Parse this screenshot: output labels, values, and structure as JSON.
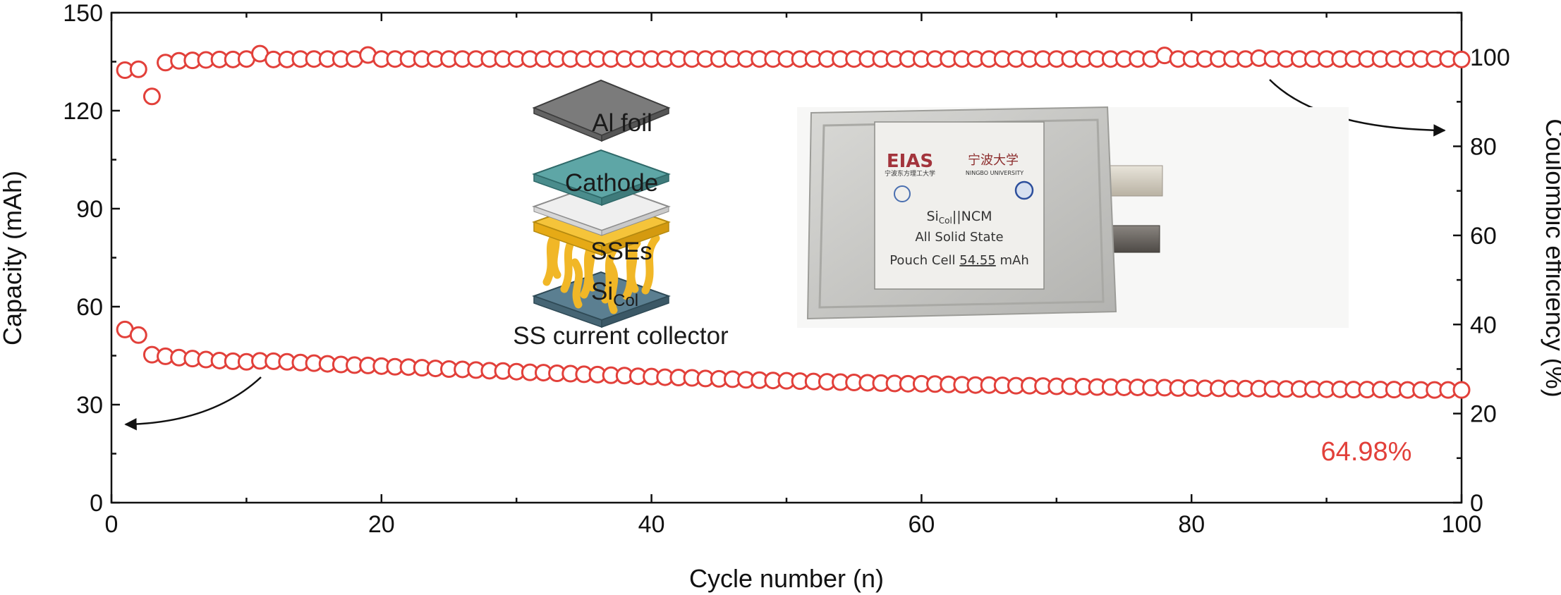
{
  "chart_data": {
    "type": "scatter",
    "xlabel": "Cycle number (n)",
    "ylabel": "Capacity (mAh)",
    "y2label": "Coulombic efficiency (%)",
    "xlim": [
      0,
      100
    ],
    "ylim": [
      0,
      150
    ],
    "y2lim": [
      0,
      110
    ],
    "xticks": [
      "0",
      "20",
      "40",
      "60",
      "80",
      "100"
    ],
    "yticks": [
      "0",
      "30",
      "60",
      "90",
      "120",
      "150"
    ],
    "y2ticks": [
      "0",
      "20",
      "40",
      "60",
      "80",
      "100"
    ],
    "grid": false,
    "legend": "none",
    "retention_annotation": "64.98%",
    "marker_color": "#e2403a",
    "series": [
      {
        "axis": "left",
        "x": [
          1,
          2,
          3,
          4,
          5,
          6,
          7,
          8,
          9,
          10,
          11,
          12,
          13,
          14,
          15,
          16,
          17,
          18,
          19,
          20,
          21,
          22,
          23,
          24,
          25,
          26,
          27,
          28,
          29,
          30,
          31,
          32,
          33,
          34,
          35,
          36,
          37,
          38,
          39,
          40,
          41,
          42,
          43,
          44,
          45,
          46,
          47,
          48,
          49,
          50,
          51,
          52,
          53,
          54,
          55,
          56,
          57,
          58,
          59,
          60,
          61,
          62,
          63,
          64,
          65,
          66,
          67,
          68,
          69,
          70,
          71,
          72,
          73,
          74,
          75,
          76,
          77,
          78,
          79,
          80,
          81,
          82,
          83,
          84,
          85,
          86,
          87,
          88,
          89,
          90,
          91,
          92,
          93,
          94,
          95,
          96,
          97,
          98,
          99,
          100
        ],
        "y": [
          53.0,
          51.3,
          45.3,
          44.8,
          44.4,
          44.1,
          43.8,
          43.5,
          43.3,
          43.1,
          43.4,
          43.3,
          43.1,
          42.9,
          42.7,
          42.5,
          42.3,
          42.1,
          42.0,
          41.8,
          41.6,
          41.5,
          41.3,
          41.1,
          40.9,
          40.8,
          40.6,
          40.4,
          40.3,
          40.1,
          39.9,
          39.8,
          39.6,
          39.5,
          39.3,
          39.2,
          39.0,
          38.9,
          38.7,
          38.6,
          38.4,
          38.3,
          38.2,
          38.0,
          37.9,
          37.8,
          37.6,
          37.5,
          37.4,
          37.3,
          37.2,
          37.1,
          37.0,
          36.9,
          36.8,
          36.7,
          36.6,
          36.5,
          36.4,
          36.4,
          36.3,
          36.2,
          36.1,
          36.0,
          36.0,
          35.9,
          35.8,
          35.8,
          35.7,
          35.6,
          35.6,
          35.5,
          35.4,
          35.4,
          35.3,
          35.3,
          35.2,
          35.2,
          35.1,
          35.1,
          35.0,
          35.0,
          34.9,
          34.9,
          34.9,
          34.8,
          34.8,
          34.8,
          34.7,
          34.7,
          34.7,
          34.6,
          34.6,
          34.6,
          34.6,
          34.5,
          34.5,
          34.5,
          34.5,
          34.5
        ]
      },
      {
        "axis": "right",
        "x": [
          1,
          2,
          3,
          4,
          5,
          6,
          7,
          8,
          9,
          10,
          11,
          12,
          13,
          14,
          15,
          16,
          17,
          18,
          19,
          20,
          21,
          22,
          23,
          24,
          25,
          26,
          27,
          28,
          29,
          30,
          31,
          32,
          33,
          34,
          35,
          36,
          37,
          38,
          39,
          40,
          41,
          42,
          43,
          44,
          45,
          46,
          47,
          48,
          49,
          50,
          51,
          52,
          53,
          54,
          55,
          56,
          57,
          58,
          59,
          60,
          61,
          62,
          63,
          64,
          65,
          66,
          67,
          68,
          69,
          70,
          71,
          72,
          73,
          74,
          75,
          76,
          77,
          78,
          79,
          80,
          81,
          82,
          83,
          84,
          85,
          86,
          87,
          88,
          89,
          90,
          91,
          92,
          93,
          94,
          95,
          96,
          97,
          98,
          99,
          100
        ],
        "y": [
          97.1,
          97.3,
          91.2,
          98.8,
          99.2,
          99.3,
          99.4,
          99.5,
          99.5,
          99.6,
          100.8,
          99.5,
          99.5,
          99.6,
          99.6,
          99.6,
          99.6,
          99.6,
          100.5,
          99.6,
          99.6,
          99.6,
          99.6,
          99.6,
          99.6,
          99.6,
          99.6,
          99.6,
          99.6,
          99.6,
          99.6,
          99.6,
          99.6,
          99.6,
          99.6,
          99.6,
          99.6,
          99.6,
          99.6,
          99.6,
          99.6,
          99.6,
          99.6,
          99.6,
          99.6,
          99.6,
          99.6,
          99.6,
          99.6,
          99.6,
          99.6,
          99.6,
          99.6,
          99.6,
          99.6,
          99.6,
          99.6,
          99.6,
          99.6,
          99.6,
          99.6,
          99.6,
          99.6,
          99.6,
          99.6,
          99.6,
          99.6,
          99.6,
          99.6,
          99.6,
          99.6,
          99.6,
          99.6,
          99.6,
          99.6,
          99.6,
          99.6,
          100.4,
          99.6,
          99.6,
          99.6,
          99.6,
          99.6,
          99.6,
          99.8,
          99.6,
          99.6,
          99.6,
          99.6,
          99.6,
          99.6,
          99.6,
          99.6,
          99.6,
          99.6,
          99.6,
          99.6,
          99.6,
          99.6,
          99.5
        ]
      }
    ]
  },
  "inset_schematic": {
    "layers": [
      "Al foil",
      "Cathode",
      "SSEs"
    ],
    "anode_label_main": "Si",
    "anode_label_sub": "Col",
    "caption": "SS current collector"
  },
  "pouch_photo": {
    "logo_left": "EIAS",
    "logo_right": "宁波大学",
    "logo_right_sub": "NINGBO UNIVERSITY",
    "logo_left_sub": "宁波东方理工大学",
    "cell_name_main": "Si",
    "cell_name_sub": "Col",
    "cell_name_rest": "||NCM",
    "line2": "All Solid State",
    "line3_prefix": "Pouch Cell ",
    "line3_value": "54.55",
    "line3_unit": " mAh"
  }
}
